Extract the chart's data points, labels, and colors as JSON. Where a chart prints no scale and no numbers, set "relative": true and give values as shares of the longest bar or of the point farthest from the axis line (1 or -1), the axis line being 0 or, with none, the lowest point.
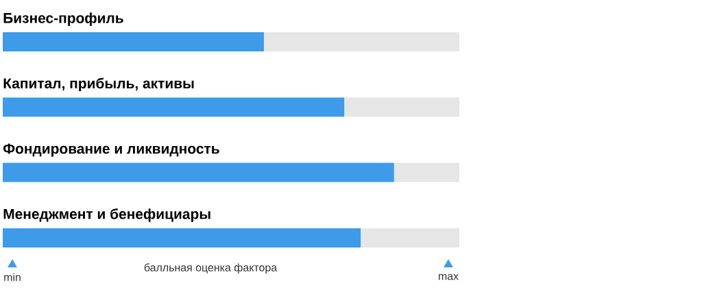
{
  "chart_data": {
    "type": "bar",
    "orientation": "horizontal",
    "stacked": true,
    "relative": true,
    "categories": [
      "Бизнес-профиль",
      "Капитал, прибыль, активы",
      "Фондирование и ликвидность",
      "Менеджмент и бенефициары"
    ],
    "series": [
      {
        "color": "#3d9be9",
        "values": [
          0.572,
          0.748,
          0.857,
          0.784
        ]
      },
      {
        "color": "#e6e6e6",
        "values": [
          0.428,
          0.252,
          0.143,
          0.216
        ]
      }
    ],
    "xlabel": "балльная оценка фактора",
    "annotations": [
      "min",
      "max"
    ]
  }
}
